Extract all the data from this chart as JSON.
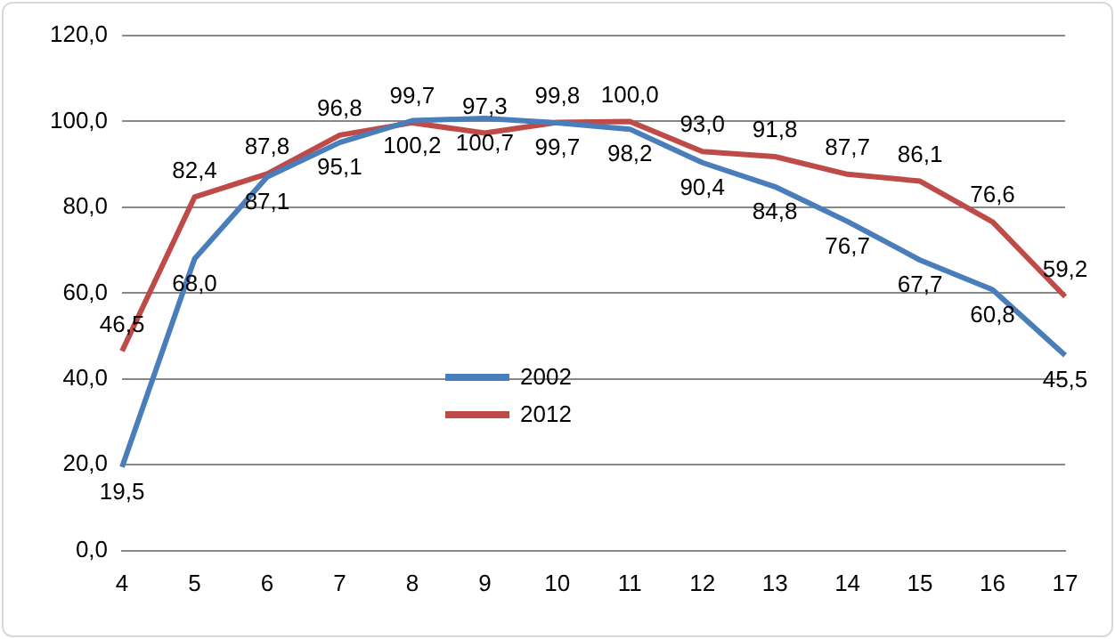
{
  "chart_data": {
    "type": "line",
    "categories": [
      "4",
      "5",
      "6",
      "7",
      "8",
      "9",
      "10",
      "11",
      "12",
      "13",
      "14",
      "15",
      "16",
      "17"
    ],
    "series": [
      {
        "name": "2002",
        "color": "#4a7ebb",
        "values": [
          19.5,
          68.0,
          87.1,
          95.1,
          100.2,
          100.7,
          99.7,
          98.2,
          90.4,
          84.8,
          76.7,
          67.7,
          60.8,
          45.5
        ],
        "value_labels": [
          "19,5",
          "68,0",
          "87,1",
          "95,1",
          "100,2",
          "100,7",
          "99,7",
          "98,2",
          "90,4",
          "84,8",
          "76,7",
          "67,7",
          "60,8",
          "45,5"
        ]
      },
      {
        "name": "2012",
        "color": "#be4b48",
        "values": [
          46.5,
          82.4,
          87.8,
          96.8,
          99.7,
          97.3,
          99.8,
          100.0,
          93.0,
          91.8,
          87.7,
          86.1,
          76.6,
          59.2
        ],
        "value_labels": [
          "46,5",
          "82,4",
          "87,8",
          "96,8",
          "99,7",
          "97,3",
          "99,8",
          "100,0",
          "93,0",
          "91,8",
          "87,7",
          "86,1",
          "76,6",
          "59,2"
        ]
      }
    ],
    "ylim": [
      0,
      120
    ],
    "yticks": [
      {
        "value": 0,
        "label": "0,0"
      },
      {
        "value": 20,
        "label": "20,0"
      },
      {
        "value": 40,
        "label": "40,0"
      },
      {
        "value": 60,
        "label": "60,0"
      },
      {
        "value": 80,
        "label": "80,0"
      },
      {
        "value": 100,
        "label": "100,0"
      },
      {
        "value": 120,
        "label": "120,0"
      }
    ],
    "grid": "y",
    "legend": "center",
    "marker": "none",
    "line_style": "solid"
  }
}
